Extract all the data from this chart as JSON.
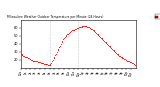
{
  "title": "Milwaukee Weather Outdoor Temperature per Minute (24 Hours)",
  "line_color": "#ff0000",
  "bg_color": "#ffffff",
  "xlim": [
    0,
    1440
  ],
  "ylim": [
    10,
    70
  ],
  "yticks": [
    20,
    30,
    40,
    50,
    60
  ],
  "xtick_positions": [
    0,
    60,
    120,
    180,
    240,
    300,
    360,
    420,
    480,
    540,
    600,
    660,
    720,
    780,
    840,
    900,
    960,
    1020,
    1080,
    1140,
    1200,
    1260,
    1320,
    1380
  ],
  "xtick_labels": [
    "12a",
    "1a",
    "2a",
    "3a",
    "4a",
    "5a",
    "6a",
    "7a",
    "8a",
    "9a",
    "10a",
    "11a",
    "12p",
    "1p",
    "2p",
    "3p",
    "4p",
    "5p",
    "6p",
    "7p",
    "8p",
    "9p",
    "10p",
    "11p"
  ],
  "legend_label": "Outdoor Temp",
  "vlines": [
    360,
    720
  ],
  "temp_data": [
    [
      0,
      28
    ],
    [
      10,
      27
    ],
    [
      20,
      26
    ],
    [
      30,
      25
    ],
    [
      40,
      25
    ],
    [
      50,
      24
    ],
    [
      60,
      24
    ],
    [
      70,
      23
    ],
    [
      80,
      23
    ],
    [
      90,
      22
    ],
    [
      100,
      22
    ],
    [
      110,
      21
    ],
    [
      120,
      21
    ],
    [
      130,
      20
    ],
    [
      140,
      20
    ],
    [
      150,
      19
    ],
    [
      160,
      19
    ],
    [
      170,
      19
    ],
    [
      180,
      18
    ],
    [
      190,
      18
    ],
    [
      200,
      18
    ],
    [
      210,
      17
    ],
    [
      220,
      17
    ],
    [
      230,
      17
    ],
    [
      240,
      17
    ],
    [
      250,
      16
    ],
    [
      260,
      16
    ],
    [
      270,
      16
    ],
    [
      280,
      16
    ],
    [
      290,
      15
    ],
    [
      300,
      15
    ],
    [
      310,
      15
    ],
    [
      320,
      15
    ],
    [
      330,
      15
    ],
    [
      340,
      14
    ],
    [
      350,
      14
    ],
    [
      360,
      14
    ],
    [
      370,
      15
    ],
    [
      380,
      16
    ],
    [
      390,
      18
    ],
    [
      400,
      20
    ],
    [
      410,
      22
    ],
    [
      420,
      24
    ],
    [
      430,
      26
    ],
    [
      440,
      28
    ],
    [
      450,
      30
    ],
    [
      460,
      32
    ],
    [
      470,
      34
    ],
    [
      480,
      36
    ],
    [
      490,
      38
    ],
    [
      500,
      40
    ],
    [
      510,
      42
    ],
    [
      520,
      44
    ],
    [
      530,
      46
    ],
    [
      540,
      48
    ],
    [
      550,
      49
    ],
    [
      560,
      50
    ],
    [
      570,
      51
    ],
    [
      580,
      52
    ],
    [
      590,
      53
    ],
    [
      600,
      54
    ],
    [
      610,
      55
    ],
    [
      620,
      55
    ],
    [
      630,
      56
    ],
    [
      640,
      57
    ],
    [
      650,
      57
    ],
    [
      660,
      58
    ],
    [
      670,
      58
    ],
    [
      680,
      59
    ],
    [
      690,
      59
    ],
    [
      700,
      60
    ],
    [
      710,
      60
    ],
    [
      720,
      60
    ],
    [
      730,
      61
    ],
    [
      740,
      61
    ],
    [
      750,
      61
    ],
    [
      760,
      61
    ],
    [
      770,
      62
    ],
    [
      780,
      62
    ],
    [
      790,
      62
    ],
    [
      800,
      62
    ],
    [
      810,
      62
    ],
    [
      820,
      62
    ],
    [
      830,
      61
    ],
    [
      840,
      61
    ],
    [
      850,
      61
    ],
    [
      860,
      60
    ],
    [
      870,
      60
    ],
    [
      880,
      59
    ],
    [
      890,
      59
    ],
    [
      900,
      58
    ],
    [
      910,
      57
    ],
    [
      920,
      56
    ],
    [
      930,
      55
    ],
    [
      940,
      54
    ],
    [
      950,
      53
    ],
    [
      960,
      52
    ],
    [
      970,
      51
    ],
    [
      980,
      50
    ],
    [
      990,
      49
    ],
    [
      1000,
      48
    ],
    [
      1010,
      47
    ],
    [
      1020,
      46
    ],
    [
      1030,
      45
    ],
    [
      1040,
      44
    ],
    [
      1050,
      43
    ],
    [
      1060,
      42
    ],
    [
      1070,
      41
    ],
    [
      1080,
      40
    ],
    [
      1090,
      39
    ],
    [
      1100,
      38
    ],
    [
      1110,
      37
    ],
    [
      1120,
      36
    ],
    [
      1130,
      35
    ],
    [
      1140,
      34
    ],
    [
      1150,
      33
    ],
    [
      1160,
      32
    ],
    [
      1170,
      31
    ],
    [
      1180,
      30
    ],
    [
      1190,
      29
    ],
    [
      1200,
      28
    ],
    [
      1210,
      27
    ],
    [
      1220,
      26
    ],
    [
      1230,
      25
    ],
    [
      1240,
      25
    ],
    [
      1250,
      24
    ],
    [
      1260,
      23
    ],
    [
      1270,
      22
    ],
    [
      1280,
      22
    ],
    [
      1290,
      21
    ],
    [
      1300,
      21
    ],
    [
      1310,
      20
    ],
    [
      1320,
      20
    ],
    [
      1330,
      19
    ],
    [
      1340,
      18
    ],
    [
      1350,
      18
    ],
    [
      1360,
      17
    ],
    [
      1370,
      17
    ],
    [
      1380,
      17
    ],
    [
      1390,
      16
    ],
    [
      1400,
      16
    ],
    [
      1410,
      15
    ],
    [
      1420,
      15
    ],
    [
      1430,
      14
    ]
  ]
}
